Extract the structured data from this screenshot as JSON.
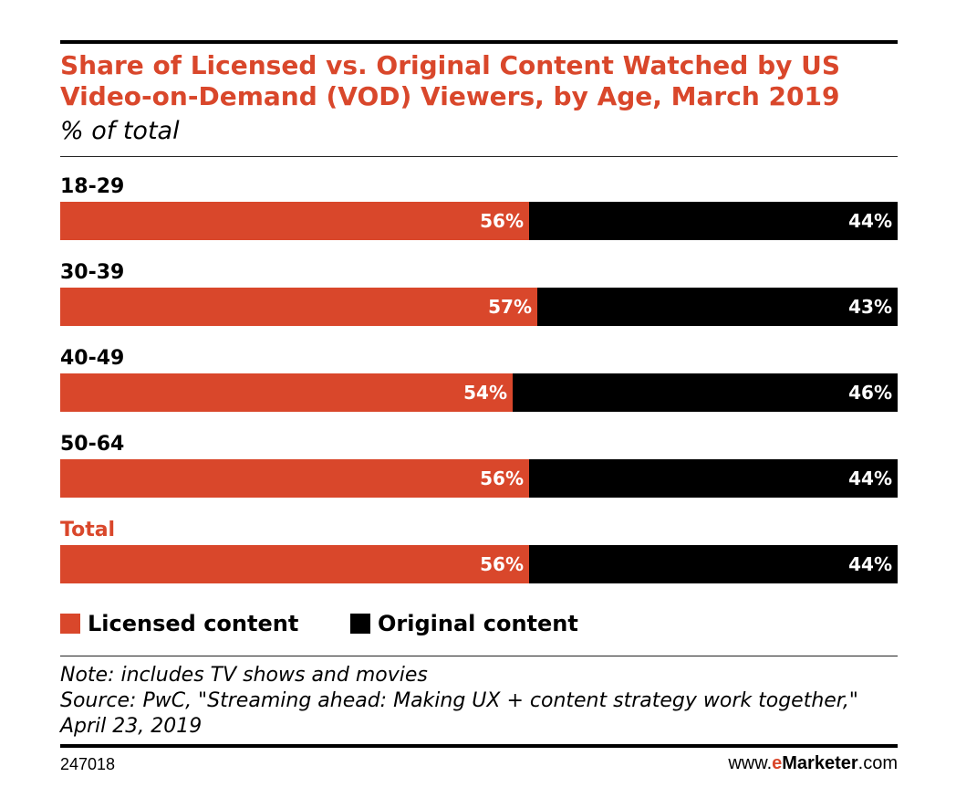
{
  "title": "Share of Licensed vs. Original Content Watched by US Video-on-Demand (VOD) Viewers, by Age, March 2019",
  "subtitle": "% of total",
  "colors": {
    "licensed": "#d9472b",
    "original": "#000000",
    "title": "#d9472b"
  },
  "chart_data": {
    "type": "bar",
    "orientation": "horizontal",
    "stacked": true,
    "categories": [
      "18-29",
      "30-39",
      "40-49",
      "50-64",
      "Total"
    ],
    "series": [
      {
        "name": "Licensed content",
        "values": [
          56,
          57,
          54,
          56,
          56
        ],
        "labels": [
          "56%",
          "57%",
          "54%",
          "56%",
          "56%"
        ]
      },
      {
        "name": "Original content",
        "values": [
          44,
          43,
          46,
          44,
          44
        ],
        "labels": [
          "44%",
          "43%",
          "46%",
          "44%",
          "44%"
        ]
      }
    ],
    "xlim": [
      0,
      100
    ],
    "legend": "bottom-left",
    "grid": false
  },
  "legend": {
    "licensed": "Licensed content",
    "original": "Original content"
  },
  "note": "Note: includes TV shows and movies",
  "source": "Source: PwC, \"Streaming ahead: Making UX + content strategy work together,\" April 23, 2019",
  "chart_id": "247018",
  "brand": {
    "prefix": "www.",
    "e": "e",
    "name": "Marketer",
    "suffix": ".com"
  }
}
